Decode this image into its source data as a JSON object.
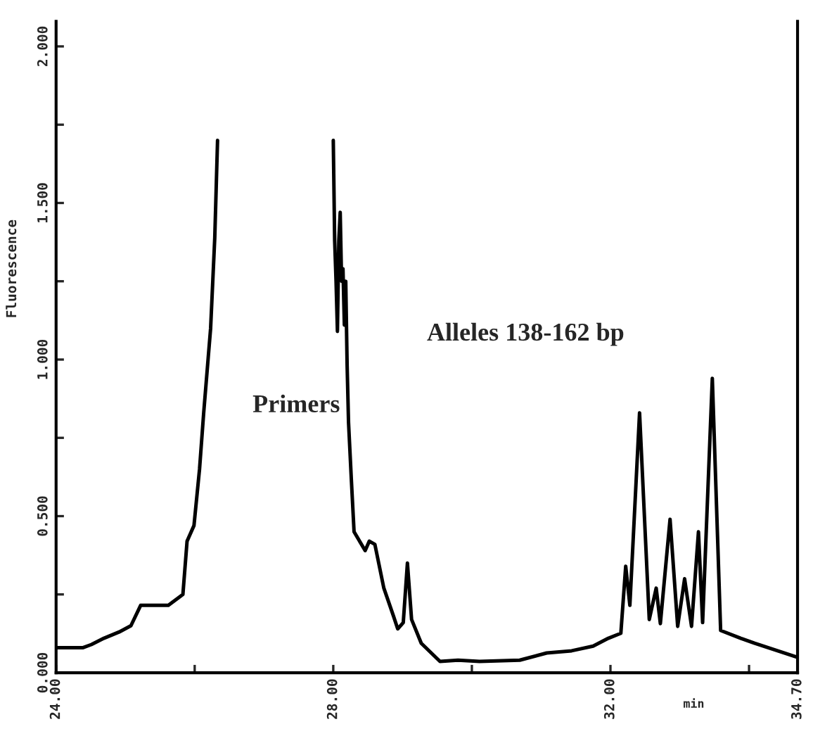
{
  "chart_data": {
    "type": "line",
    "xlabel": "min",
    "ylabel": "Fluorescence",
    "annotations": [
      "Primers",
      "Alleles 138-162 bp"
    ],
    "series": [
      {
        "color": "#000000",
        "x": [
          24.0,
          24.39,
          24.51,
          24.69,
          24.91,
          25.08,
          25.22,
          25.62,
          25.83,
          25.89,
          25.99,
          26.07,
          26.13,
          26.23,
          26.29,
          26.33,
          26.37,
          27.2,
          27.98,
          28.0,
          28.02,
          28.04,
          28.06,
          28.08,
          28.1,
          28.12,
          28.14,
          28.16,
          28.18,
          28.2,
          28.22,
          28.26,
          28.3,
          28.46,
          28.52,
          28.6,
          28.73,
          28.87,
          28.93,
          29.01,
          29.07,
          29.13,
          29.27,
          29.54,
          29.8,
          30.11,
          30.69,
          31.08,
          31.44,
          31.75,
          31.97,
          32.15,
          32.22,
          32.28,
          32.42,
          32.56,
          32.66,
          32.72,
          32.86,
          32.97,
          33.07,
          33.17,
          33.27,
          33.33,
          33.47,
          33.59,
          33.88,
          34.08,
          34.69
        ],
        "values": [
          0.08,
          0.08,
          0.09,
          0.11,
          0.13,
          0.15,
          0.215,
          0.215,
          0.25,
          0.42,
          0.47,
          0.65,
          0.83,
          1.1,
          1.39,
          1.7,
          null,
          null,
          null,
          1.7,
          1.38,
          1.25,
          1.09,
          1.38,
          1.47,
          1.25,
          1.29,
          1.11,
          1.25,
          0.98,
          0.8,
          0.62,
          0.45,
          0.39,
          0.42,
          0.41,
          0.27,
          0.18,
          0.14,
          0.16,
          0.35,
          0.17,
          0.094,
          0.036,
          0.04,
          0.036,
          0.04,
          0.063,
          0.07,
          0.085,
          0.11,
          0.126,
          0.34,
          0.215,
          0.83,
          0.17,
          0.27,
          0.157,
          0.49,
          0.148,
          0.3,
          0.148,
          0.45,
          0.16,
          0.94,
          0.135,
          0.11,
          0.094,
          0.05
        ]
      }
    ],
    "xlim": [
      24.0,
      34.7
    ],
    "ylim": [
      0,
      2.08
    ],
    "xticks": [
      {
        "value": 24,
        "label": "24.00"
      },
      {
        "value": 26,
        "label": null
      },
      {
        "value": 28,
        "label": "28.00"
      },
      {
        "value": 30,
        "label": null
      },
      {
        "value": 32,
        "label": "32.00"
      },
      {
        "value": 34,
        "label": null
      },
      {
        "value": 34.7,
        "label": "34.70"
      }
    ],
    "yticks": [
      {
        "value": 0,
        "label": "0.000"
      },
      {
        "value": 0.25,
        "label": null
      },
      {
        "value": 0.5,
        "label": "0.500"
      },
      {
        "value": 0.75,
        "label": null
      },
      {
        "value": 1.0,
        "label": "1.000"
      },
      {
        "value": 1.25,
        "label": null
      },
      {
        "value": 1.5,
        "label": "1.500"
      },
      {
        "value": 1.75,
        "label": null
      },
      {
        "value": 2.0,
        "label": "2.000"
      }
    ],
    "grid": false,
    "legend": false,
    "marker": "none",
    "line_style": "solid"
  }
}
